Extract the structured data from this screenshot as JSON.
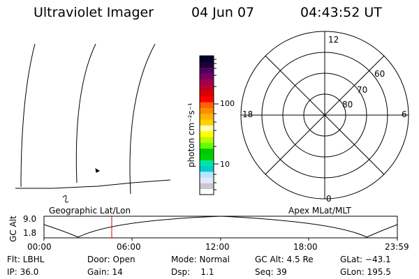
{
  "header": {
    "instrument": "Ultraviolet Imager",
    "date": "04 Jun 07",
    "time": "04:43:52 UT"
  },
  "colorbar": {
    "unit_label": "photon cm⁻²s⁻¹",
    "tick_100": "100",
    "tick_10": "10",
    "scale": "log",
    "colors": [
      "#ffffff",
      "#c8c8c8",
      "#e6e6ff",
      "#b4e6ff",
      "#00cccc",
      "#00e6a0",
      "#00d200",
      "#00c800",
      "#64ff00",
      "#b4ff00",
      "#ffff00",
      "#ffffb4",
      "#ffd200",
      "#ffb400",
      "#ff8c00",
      "#ff6400",
      "#ff0000",
      "#dc0000",
      "#be0028",
      "#a00050",
      "#78005a",
      "#500064",
      "#1e0032",
      "#000032"
    ]
  },
  "polar_plot": {
    "mlt_labels": {
      "top": "12",
      "left": "18",
      "right": "6",
      "bottom": "0"
    },
    "lat_labels": [
      "60",
      "70",
      "80"
    ]
  },
  "timeline": {
    "left_title": "Geographic Lat/Lon",
    "right_title": "Apex MLat/MLT",
    "y_axis_label": "GC Alt",
    "y_ticks": [
      "9.0",
      "1.8"
    ],
    "x_ticks": [
      "00:00",
      "06:00",
      "12:00",
      "18:00",
      "23:59"
    ],
    "marker_color": "#e00000"
  },
  "footer": {
    "row1": {
      "filter": "Flt: LBHL",
      "door": "Door: Open",
      "mode": "Mode: Normal",
      "gc_alt": "GC Alt: 4.5 Re",
      "glat": "GLat: −43.1"
    },
    "row2": {
      "ip": "IP: 36.0",
      "gain": "Gain: 14",
      "dsp": "Dsp:    1.1",
      "seq": "Seq: 39",
      "glon": "GLon: 195.5"
    }
  }
}
